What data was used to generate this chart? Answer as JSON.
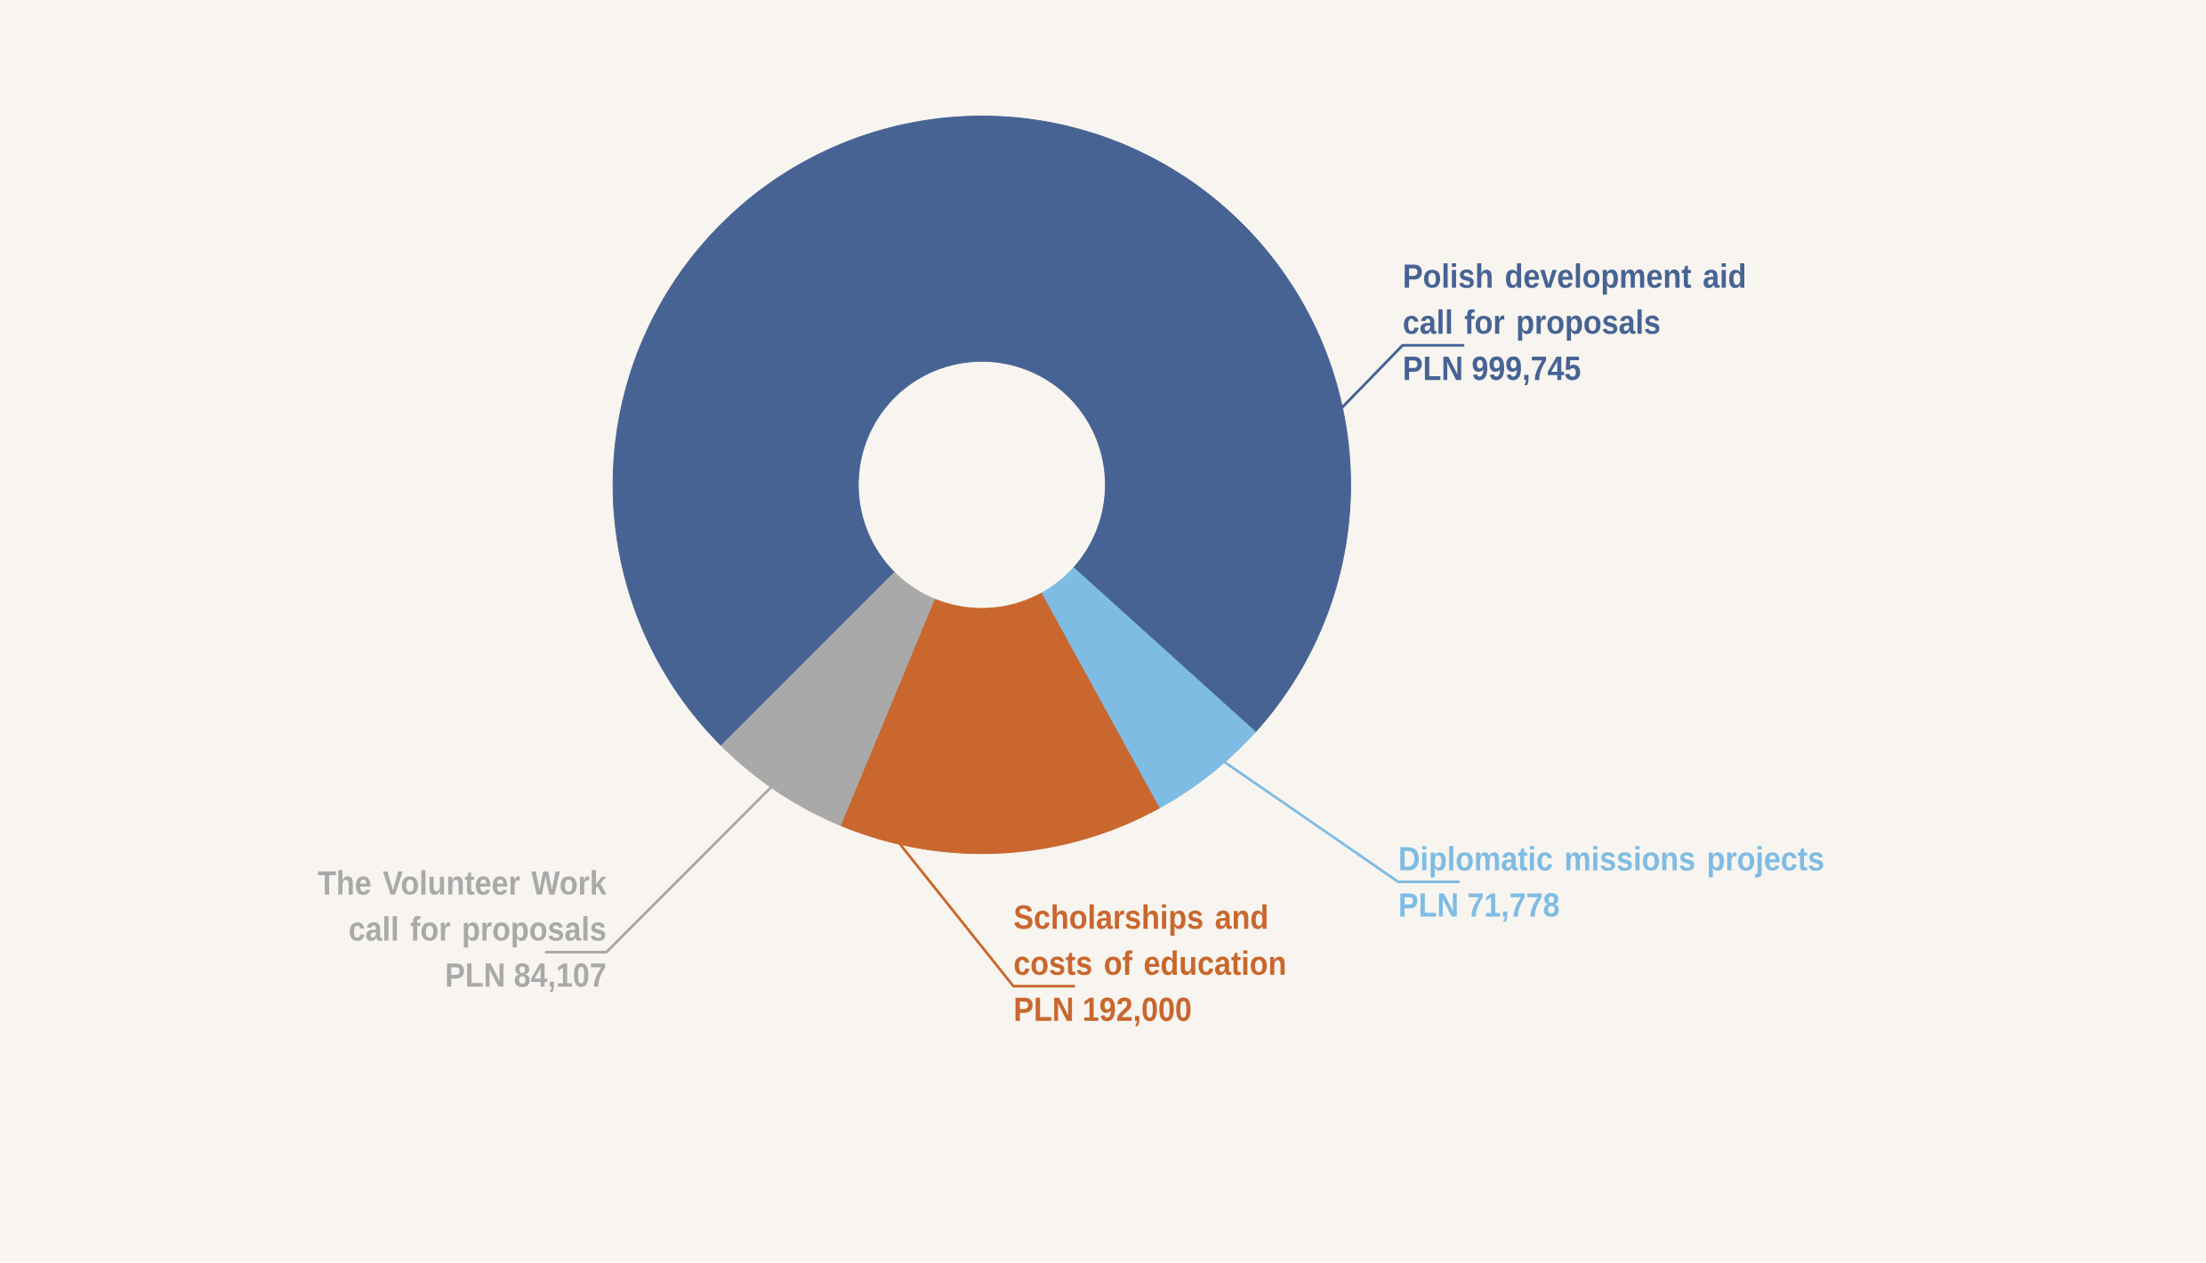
{
  "chart_data": {
    "type": "donut",
    "categories": [
      "Polish development aid call for proposals",
      "Diplomatic missions projects",
      "Scholarships and costs of education",
      "The Volunteer Work call for proposals"
    ],
    "values": [
      999745,
      71778,
      192000,
      84107
    ],
    "colors": [
      "#476394",
      "#7fbce4",
      "#c9672e",
      "#a9a9a9"
    ],
    "value_labels": [
      "PLN 999,745",
      "PLN 71,778",
      "PLN 192,000",
      "PLN 84,107"
    ]
  }
}
